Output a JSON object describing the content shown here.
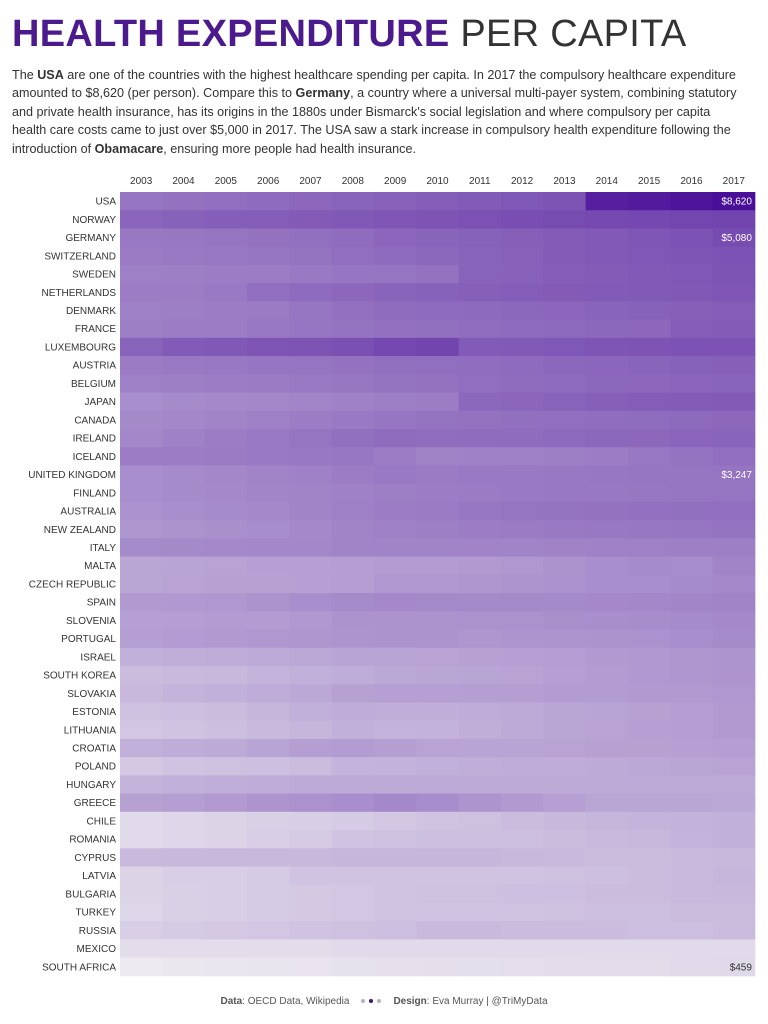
{
  "header": {
    "title_bold": "HEALTH EXPENDITURE",
    "title_light": "PER CAPITA"
  },
  "intro": {
    "p1": "The ",
    "b1": "USA",
    "p2": " are one of the countries with the highest healthcare spending per capita. In 2017 the compulsory healthcare expenditure amounted to $8,620 (per person). Compare this to ",
    "b2": "Germany",
    "p3": ", a country where a universal multi-payer system, combining statutory and private health insurance, has its origins in the 1880s under Bismarck's social legislation and where compulsory per capita health care costs came to just over $5,000 in 2017. The USA saw a stark increase in compulsory health expenditure following the introduction of ",
    "b3": "Obamacare",
    "p4": ", ensuring more people had health insurance."
  },
  "colors": {
    "title_accent": "#4b1a8c",
    "scale_low": "#ece9f0",
    "scale_high": "#4a0f99",
    "dot_light": "#b9b0c8",
    "dot_dark": "#3e1478"
  },
  "chart_data": {
    "type": "heatmap",
    "years": [
      "2003",
      "2004",
      "2005",
      "2006",
      "2007",
      "2008",
      "2009",
      "2010",
      "2011",
      "2012",
      "2013",
      "2014",
      "2015",
      "2016",
      "2017"
    ],
    "countries": [
      "USA",
      "NORWAY",
      "GERMANY",
      "SWITZERLAND",
      "SWEDEN",
      "NETHERLANDS",
      "DENMARK",
      "FRANCE",
      "LUXEMBOURG",
      "AUSTRIA",
      "BELGIUM",
      "JAPAN",
      "CANADA",
      "IRELAND",
      "ICELAND",
      "UNITED KINGDOM",
      "FINLAND",
      "AUSTRALIA",
      "NEW ZEALAND",
      "ITALY",
      "MALTA",
      "CZECH REPUBLIC",
      "SPAIN",
      "SLOVENIA",
      "PORTUGAL",
      "ISRAEL",
      "SOUTH KOREA",
      "SLOVAKIA",
      "ESTONIA",
      "LITHUANIA",
      "CROATIA",
      "POLAND",
      "HUNGARY",
      "GREECE",
      "CHILE",
      "ROMANIA",
      "CYPRUS",
      "LATVIA",
      "BULGARIA",
      "TURKEY",
      "RUSSIA",
      "MEXICO",
      "SOUTH AFRICA"
    ],
    "values": [
      [
        3200,
        3350,
        3500,
        3650,
        3800,
        3950,
        4100,
        4250,
        4400,
        4550,
        4700,
        7600,
        7900,
        8250,
        8620
      ],
      [
        3900,
        4050,
        4200,
        4250,
        4350,
        4500,
        4600,
        4700,
        4850,
        5000,
        5100,
        5250,
        5300,
        5400,
        5500
      ],
      [
        3100,
        3150,
        3250,
        3350,
        3450,
        3600,
        3850,
        3950,
        4050,
        4150,
        4300,
        4450,
        4600,
        4800,
        5080
      ],
      [
        3000,
        3050,
        3100,
        3200,
        3300,
        3500,
        3650,
        3750,
        3950,
        4100,
        4300,
        4450,
        4550,
        4650,
        4750
      ],
      [
        2800,
        2850,
        2900,
        2950,
        3050,
        3200,
        3250,
        3350,
        4000,
        4100,
        4200,
        4300,
        4450,
        4550,
        4700
      ],
      [
        2900,
        2950,
        3050,
        3500,
        3650,
        3800,
        3950,
        4050,
        4150,
        4250,
        4350,
        4400,
        4450,
        4500,
        4600
      ],
      [
        2800,
        2850,
        2900,
        3000,
        3200,
        3400,
        3600,
        3650,
        3700,
        3750,
        3850,
        3950,
        4050,
        4150,
        4250
      ],
      [
        2850,
        2900,
        2950,
        3100,
        3200,
        3300,
        3400,
        3450,
        3550,
        3650,
        3700,
        3750,
        3800,
        4200,
        4300
      ],
      [
        4000,
        4400,
        4500,
        4650,
        4700,
        4900,
        5300,
        5500,
        4400,
        4450,
        4550,
        4650,
        4700,
        4750,
        4800
      ],
      [
        3000,
        3050,
        3100,
        3200,
        3250,
        3350,
        3450,
        3500,
        3550,
        3650,
        3750,
        3850,
        3950,
        4050,
        4150
      ],
      [
        2800,
        2850,
        2950,
        3000,
        3050,
        3150,
        3300,
        3350,
        3500,
        3600,
        3650,
        3750,
        3800,
        3900,
        4000
      ],
      [
        2300,
        2400,
        2500,
        2550,
        2600,
        2750,
        2850,
        2950,
        3750,
        3850,
        4000,
        4150,
        4250,
        4300,
        4350
      ],
      [
        2450,
        2550,
        2650,
        2800,
        2900,
        3050,
        3200,
        3300,
        3350,
        3450,
        3500,
        3550,
        3600,
        3700,
        3800
      ],
      [
        2550,
        2750,
        2950,
        3050,
        3250,
        3450,
        3600,
        3550,
        3600,
        3600,
        3700,
        3750,
        3800,
        3900,
        3950
      ],
      [
        2900,
        2950,
        3000,
        3050,
        3100,
        3150,
        2950,
        2700,
        2750,
        2800,
        2850,
        2900,
        3100,
        3300,
        3500
      ],
      [
        2300,
        2400,
        2550,
        2650,
        2750,
        2900,
        3050,
        3000,
        3050,
        3050,
        3100,
        3150,
        3200,
        3220,
        3247
      ],
      [
        2300,
        2400,
        2500,
        2600,
        2650,
        2750,
        2850,
        2900,
        3000,
        3050,
        3100,
        3100,
        3150,
        3200,
        3250
      ],
      [
        2200,
        2300,
        2400,
        2500,
        2650,
        2800,
        2950,
        3000,
        3150,
        3250,
        3300,
        3350,
        3400,
        3450,
        3500
      ],
      [
        2050,
        2150,
        2250,
        2350,
        2500,
        2650,
        2800,
        2850,
        2950,
        3000,
        3050,
        3100,
        3150,
        3200,
        3300
      ],
      [
        2400,
        2450,
        2500,
        2550,
        2550,
        2650,
        2650,
        2650,
        2650,
        2650,
        2700,
        2750,
        2800,
        2850,
        2850
      ],
      [
        1550,
        1600,
        1650,
        1750,
        1750,
        1800,
        1850,
        1850,
        1900,
        2000,
        2150,
        2300,
        2400,
        2350,
        2650
      ],
      [
        1550,
        1650,
        1700,
        1700,
        1750,
        1800,
        1950,
        1950,
        2050,
        2100,
        2200,
        2300,
        2300,
        2400,
        2500
      ],
      [
        1900,
        1950,
        2000,
        2150,
        2300,
        2400,
        2500,
        2450,
        2450,
        2450,
        2450,
        2500,
        2550,
        2600,
        2650
      ],
      [
        1750,
        1800,
        1850,
        1850,
        1950,
        2150,
        2150,
        2150,
        2200,
        2200,
        2250,
        2300,
        2350,
        2400,
        2500
      ],
      [
        1800,
        1850,
        1900,
        2000,
        2050,
        2100,
        2150,
        2150,
        2050,
        2100,
        2100,
        2150,
        2200,
        2300,
        2400
      ],
      [
        1300,
        1350,
        1400,
        1450,
        1500,
        1600,
        1600,
        1650,
        1700,
        1750,
        1800,
        1900,
        1950,
        2050,
        2100
      ],
      [
        1000,
        1050,
        1100,
        1200,
        1300,
        1400,
        1500,
        1550,
        1600,
        1650,
        1750,
        1850,
        1950,
        2050,
        2100
      ],
      [
        1100,
        1200,
        1300,
        1400,
        1500,
        1700,
        1750,
        1750,
        1800,
        1800,
        1850,
        1850,
        1900,
        1900,
        2000
      ],
      [
        900,
        950,
        1000,
        1150,
        1300,
        1400,
        1350,
        1350,
        1400,
        1450,
        1550,
        1600,
        1700,
        1800,
        1900
      ],
      [
        800,
        850,
        950,
        1050,
        1150,
        1300,
        1200,
        1250,
        1350,
        1450,
        1550,
        1650,
        1750,
        1800,
        1900
      ],
      [
        1300,
        1400,
        1450,
        1600,
        1800,
        1850,
        1800,
        1650,
        1600,
        1600,
        1650,
        1700,
        1700,
        1750,
        1800
      ],
      [
        750,
        850,
        900,
        950,
        1000,
        1200,
        1250,
        1300,
        1350,
        1400,
        1400,
        1450,
        1500,
        1550,
        1650
      ],
      [
        1200,
        1300,
        1350,
        1400,
        1450,
        1450,
        1450,
        1450,
        1450,
        1450,
        1450,
        1450,
        1450,
        1450,
        1450
      ],
      [
        1700,
        1800,
        1900,
        2100,
        2200,
        2300,
        2500,
        2350,
        2100,
        1900,
        1750,
        1550,
        1550,
        1550,
        1500
      ],
      [
        450,
        500,
        550,
        600,
        650,
        700,
        800,
        850,
        900,
        1000,
        1100,
        1150,
        1200,
        1250,
        1300
      ],
      [
        450,
        500,
        550,
        650,
        700,
        850,
        900,
        950,
        950,
        950,
        1000,
        1050,
        1100,
        1200,
        1300
      ],
      [
        1050,
        1100,
        1100,
        1100,
        1100,
        1150,
        1150,
        1150,
        1150,
        1100,
        1050,
        1000,
        1000,
        1050,
        1100
      ],
      [
        550,
        650,
        650,
        700,
        850,
        850,
        850,
        850,
        850,
        850,
        900,
        950,
        1000,
        1050,
        1150
      ],
      [
        550,
        600,
        650,
        700,
        750,
        800,
        850,
        900,
        900,
        950,
        950,
        1000,
        1000,
        1050,
        1100
      ],
      [
        500,
        600,
        650,
        700,
        750,
        800,
        850,
        850,
        850,
        850,
        900,
        950,
        950,
        1000,
        1000
      ],
      [
        650,
        700,
        750,
        800,
        850,
        900,
        950,
        1050,
        1050,
        1000,
        1000,
        1000,
        950,
        950,
        1000
      ],
      [
        400,
        400,
        400,
        400,
        400,
        450,
        450,
        450,
        450,
        450,
        450,
        450,
        450,
        450,
        450
      ],
      [
        250,
        270,
        290,
        300,
        320,
        340,
        360,
        370,
        380,
        390,
        400,
        410,
        420,
        440,
        459
      ]
    ],
    "data_labels": [
      {
        "country": "USA",
        "year": "2017",
        "text": "$8,620"
      },
      {
        "country": "GERMANY",
        "year": "2017",
        "text": "$5,080"
      },
      {
        "country": "UNITED KINGDOM",
        "year": "2017",
        "text": "$3,247"
      },
      {
        "country": "SOUTH AFRICA",
        "year": "2017",
        "text": "$459"
      }
    ],
    "color_range": [
      250,
      8620
    ],
    "grid": false
  },
  "footer": {
    "data_label": "Data",
    "data_value": ": OECD Data, Wikipedia",
    "design_label": "Design",
    "design_value": ": Eva Murray | @TriMyData"
  }
}
